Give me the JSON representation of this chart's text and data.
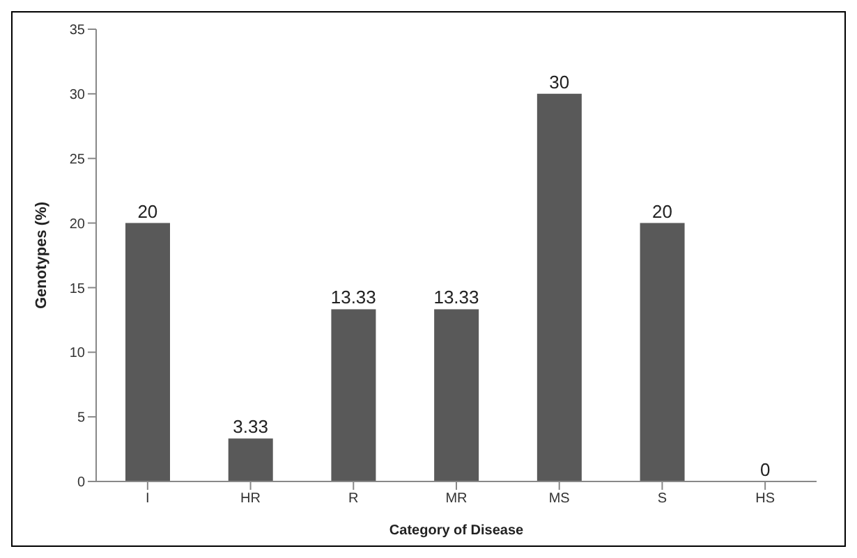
{
  "chart_data": {
    "type": "bar",
    "xlabel": "Category of Disease",
    "ylabel": "Genotypes  (%)",
    "categories": [
      "I",
      "HR",
      "R",
      "MR",
      "MS",
      "S",
      "HS"
    ],
    "values": [
      20,
      3.33,
      13.33,
      13.33,
      30,
      20,
      0
    ],
    "color": "#595959",
    "ylim": [
      0,
      35
    ],
    "yticks": [
      0,
      5,
      10,
      15,
      20,
      25,
      30,
      35
    ],
    "grid": false,
    "data_labels": true
  }
}
